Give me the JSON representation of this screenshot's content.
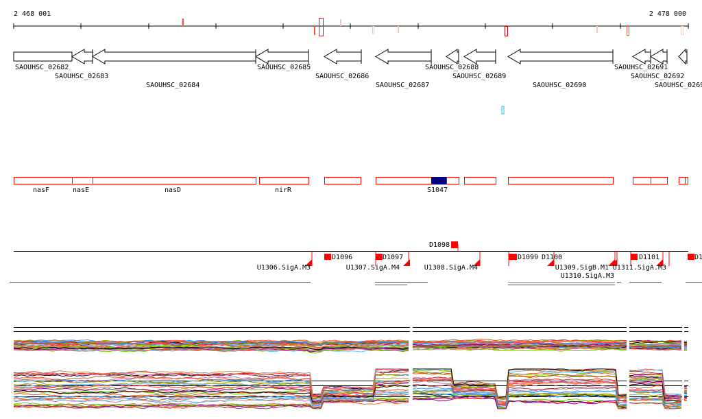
{
  "ruler": {
    "start_label": "2 468 001",
    "end_label": "2 478 000"
  },
  "genes": [
    {
      "name": "SAOUHSC_02682"
    },
    {
      "name": "SAOUHSC_02683"
    },
    {
      "name": "SAOUHSC_02684"
    },
    {
      "name": "SAOUHSC_02685"
    },
    {
      "name": "SAOUHSC_02686"
    },
    {
      "name": "SAOUHSC_02687"
    },
    {
      "name": "SAOUHSC_02688"
    },
    {
      "name": "SAOUHSC_02689"
    },
    {
      "name": "SAOUHSC_02690"
    },
    {
      "name": "SAOUHSC_02691"
    },
    {
      "name": "SAOUHSC_02692"
    },
    {
      "name": "SAOUHSC_0269"
    }
  ],
  "operons": {
    "labels": [
      "nasF",
      "nasE",
      "nasD",
      "nirR",
      "S1047"
    ]
  },
  "promoters": {
    "d_labels": [
      "D1098",
      "D1096",
      "D1097",
      "D1099",
      "D1100",
      "D1101",
      "D1"
    ],
    "u_labels": [
      "U1306.SigA.M3",
      "U1307.SigA.M4",
      "U1308.SigA.M4",
      "U1309.SigB.M1",
      "U1310.SigA.M3",
      "U1311.SigA.M3"
    ]
  },
  "colors": {
    "feature": "#ff0000",
    "srna": "#000080",
    "marker_dark": "#b00000",
    "marker_light": "#f5c8b8",
    "green": "#00dd00",
    "cyan": "#33bbcc"
  }
}
